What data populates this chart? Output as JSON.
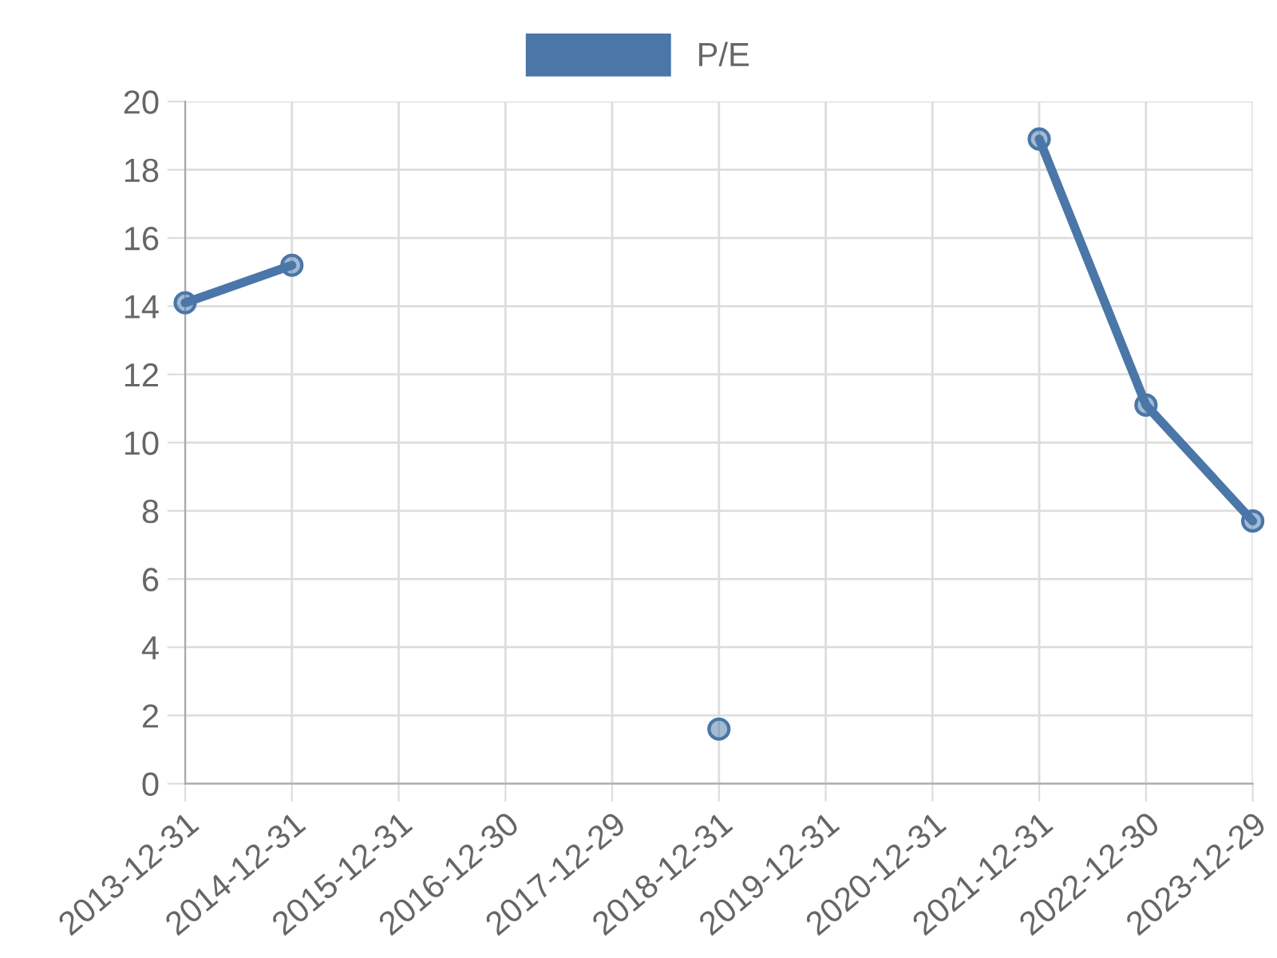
{
  "chart_data": {
    "type": "line",
    "categories": [
      "2013-12-31",
      "2014-12-31",
      "2015-12-31",
      "2016-12-30",
      "2017-12-29",
      "2018-12-31",
      "2019-12-31",
      "2020-12-31",
      "2021-12-31",
      "2022-12-30",
      "2023-12-29"
    ],
    "series": [
      {
        "name": "P/E",
        "color": "#4a76a8",
        "values": [
          14.1,
          15.2,
          null,
          null,
          null,
          1.6,
          null,
          null,
          18.9,
          11.1,
          7.7
        ]
      }
    ],
    "ylim": [
      0,
      20
    ],
    "yticks": [
      0,
      2,
      4,
      6,
      8,
      10,
      12,
      14,
      16,
      18,
      20
    ],
    "grid": true,
    "legend": "top",
    "marker": "circle",
    "line_style": "solid"
  }
}
